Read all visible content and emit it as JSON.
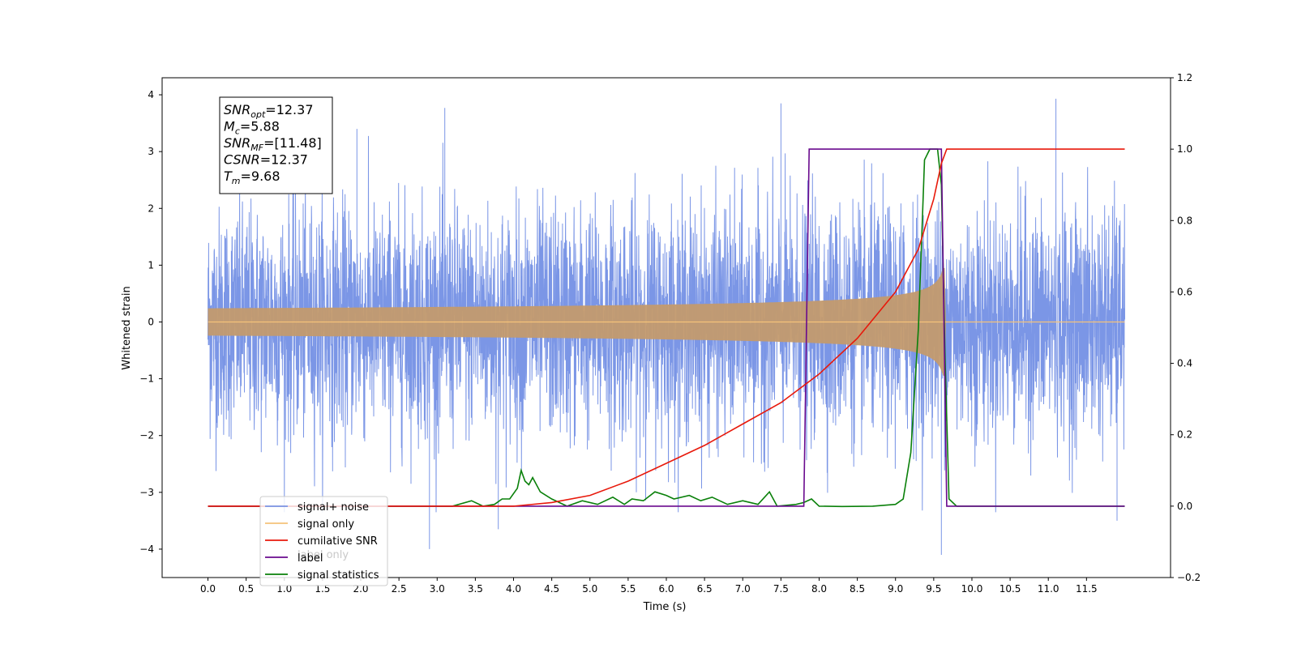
{
  "chart_data": {
    "type": "line",
    "xlabel": "Time (s)",
    "ylabel_left": "Whitened strain",
    "ylabel_right": "",
    "xlim": [
      -0.6,
      12.6
    ],
    "ylim_left": [
      -4.5,
      4.3
    ],
    "ylim_right": [
      -0.2,
      1.2
    ],
    "x_ticks": [
      "0.0",
      "0.5",
      "1.0",
      "1.5",
      "2.0",
      "2.5",
      "3.0",
      "3.5",
      "4.0",
      "4.5",
      "5.0",
      "5.5",
      "6.0",
      "6.5",
      "7.0",
      "7.5",
      "8.0",
      "8.5",
      "9.0",
      "9.5",
      "10.0",
      "10.5",
      "11.0",
      "11.5"
    ],
    "y_ticks_left": [
      "4",
      "3",
      "2",
      "1",
      "0",
      "−1",
      "−2",
      "−3",
      "−4"
    ],
    "y_ticks_right": [
      "1.2",
      "1.0",
      "0.8",
      "0.6",
      "0.4",
      "0.2",
      "0.0",
      "−0.2"
    ],
    "legend_position": "lower-left",
    "series": [
      {
        "name": "signal+ noise",
        "color": "#7b96e6",
        "axis": "left",
        "x_range": [
          0.0,
          12.0
        ],
        "sigma": 1.0,
        "notable_extremes": [
          [
            1.95,
            3.4
          ],
          [
            3.1,
            3.77
          ],
          [
            7.5,
            3.85
          ],
          [
            11.1,
            3.93
          ],
          [
            2.9,
            -4.0
          ],
          [
            3.8,
            -3.65
          ],
          [
            9.6,
            -4.1
          ],
          [
            11.9,
            -3.5
          ]
        ]
      },
      {
        "name": "signal only",
        "color": "#f5c27a",
        "axis": "left",
        "chirp_end": 9.66,
        "peak_amplitude": 0.95
      },
      {
        "name": "cumilative SNR",
        "color": "#e8190b",
        "axis": "right",
        "points": [
          [
            0.0,
            0.0
          ],
          [
            3.5,
            0.0
          ],
          [
            4.0,
            0.0
          ],
          [
            4.5,
            0.01
          ],
          [
            5.0,
            0.03
          ],
          [
            5.5,
            0.07
          ],
          [
            6.0,
            0.12
          ],
          [
            6.5,
            0.17
          ],
          [
            7.0,
            0.23
          ],
          [
            7.5,
            0.29
          ],
          [
            8.0,
            0.37
          ],
          [
            8.5,
            0.47
          ],
          [
            9.0,
            0.6
          ],
          [
            9.3,
            0.72
          ],
          [
            9.5,
            0.86
          ],
          [
            9.6,
            0.96
          ],
          [
            9.67,
            1.0
          ],
          [
            12.0,
            1.0
          ]
        ]
      },
      {
        "name": "label",
        "color": "#6a0a8e",
        "axis": "right",
        "points": [
          [
            0.0,
            0.0
          ],
          [
            7.8,
            0.0
          ],
          [
            7.87,
            1.0
          ],
          [
            9.6,
            1.0
          ],
          [
            9.67,
            0.0
          ],
          [
            12.0,
            0.0
          ]
        ]
      },
      {
        "name": "label only",
        "color": "#c8c8c8",
        "axis": "right",
        "points": []
      },
      {
        "name": "signal statistics",
        "color": "#0a800a",
        "axis": "right",
        "points": [
          [
            0.0,
            0.0
          ],
          [
            3.2,
            0.0
          ],
          [
            3.45,
            0.015
          ],
          [
            3.6,
            0.0
          ],
          [
            3.75,
            0.005
          ],
          [
            3.85,
            0.02
          ],
          [
            3.95,
            0.02
          ],
          [
            4.05,
            0.05
          ],
          [
            4.1,
            0.1
          ],
          [
            4.15,
            0.07
          ],
          [
            4.2,
            0.06
          ],
          [
            4.25,
            0.08
          ],
          [
            4.35,
            0.04
          ],
          [
            4.5,
            0.02
          ],
          [
            4.7,
            0.0
          ],
          [
            4.9,
            0.015
          ],
          [
            5.1,
            0.005
          ],
          [
            5.3,
            0.025
          ],
          [
            5.45,
            0.005
          ],
          [
            5.55,
            0.02
          ],
          [
            5.7,
            0.015
          ],
          [
            5.85,
            0.04
          ],
          [
            6.0,
            0.03
          ],
          [
            6.1,
            0.02
          ],
          [
            6.3,
            0.03
          ],
          [
            6.45,
            0.015
          ],
          [
            6.6,
            0.025
          ],
          [
            6.8,
            0.005
          ],
          [
            7.0,
            0.015
          ],
          [
            7.2,
            0.005
          ],
          [
            7.35,
            0.04
          ],
          [
            7.45,
            0.0
          ],
          [
            7.7,
            0.005
          ],
          [
            7.8,
            0.01
          ],
          [
            7.9,
            0.02
          ],
          [
            8.0,
            0.0
          ],
          [
            8.3,
            -0.001
          ],
          [
            8.7,
            0.0
          ],
          [
            9.0,
            0.005
          ],
          [
            9.1,
            0.02
          ],
          [
            9.2,
            0.15
          ],
          [
            9.3,
            0.5
          ],
          [
            9.38,
            0.97
          ],
          [
            9.45,
            1.0
          ],
          [
            9.55,
            1.0
          ],
          [
            9.6,
            0.9
          ],
          [
            9.65,
            0.4
          ],
          [
            9.7,
            0.02
          ],
          [
            9.8,
            0.0
          ],
          [
            12.0,
            0.0
          ]
        ]
      }
    ],
    "annotation": [
      {
        "name": "SNR",
        "sub": "opt",
        "value": "=12.37"
      },
      {
        "name": "M",
        "sub": "c",
        "value": "=5.88"
      },
      {
        "name": "SNR",
        "sub": "MF",
        "value": "=[11.48]"
      },
      {
        "name": "CSNR",
        "sub": "",
        "value": "=12.37"
      },
      {
        "name": "T",
        "sub": "m",
        "value": "=9.68"
      }
    ]
  }
}
